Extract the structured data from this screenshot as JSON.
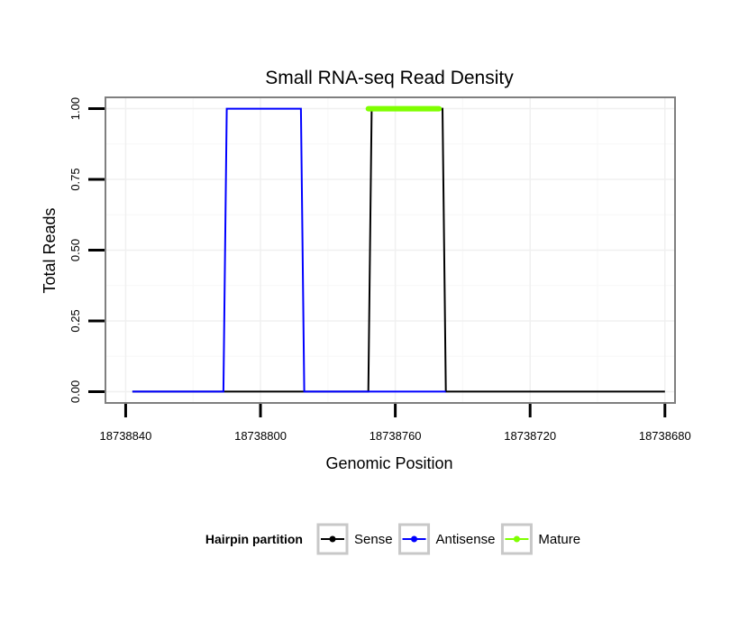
{
  "chart_data": {
    "type": "line",
    "title": "Small RNA-seq Read Density",
    "xlabel": "Genomic Position",
    "ylabel": "Total Reads",
    "x_reversed": true,
    "xlim": [
      18738846,
      18738677
    ],
    "ylim": [
      -0.04,
      1.04
    ],
    "x_ticks": [
      18738840,
      18738800,
      18738760,
      18738720,
      18738680
    ],
    "x_tick_labels": [
      "18738840",
      "18738800",
      "18738760",
      "18738720",
      "18738680"
    ],
    "y_ticks": [
      0,
      0.25,
      0.5,
      0.75,
      1.0
    ],
    "y_tick_labels": [
      "0.00",
      "0.25",
      "0.50",
      "0.75",
      "1.00"
    ],
    "grid": true,
    "legend_title": "Hairpin partition",
    "legend_position": "bottom",
    "series": [
      {
        "name": "Sense",
        "color": "#000000",
        "x": [
          18738838,
          18738768,
          18738767,
          18738746,
          18738745,
          18738680
        ],
        "y": [
          0,
          0,
          1,
          1,
          0,
          0
        ]
      },
      {
        "name": "Antisense",
        "color": "#0000ff",
        "x": [
          18738838,
          18738811,
          18738810,
          18738788,
          18738787,
          18738768,
          18738745
        ],
        "y": [
          0,
          0,
          1,
          1,
          0,
          0,
          0
        ]
      },
      {
        "name": "Mature",
        "color": "#7fff00",
        "x": [
          18738768,
          18738747
        ],
        "y": [
          1,
          1
        ]
      }
    ]
  }
}
